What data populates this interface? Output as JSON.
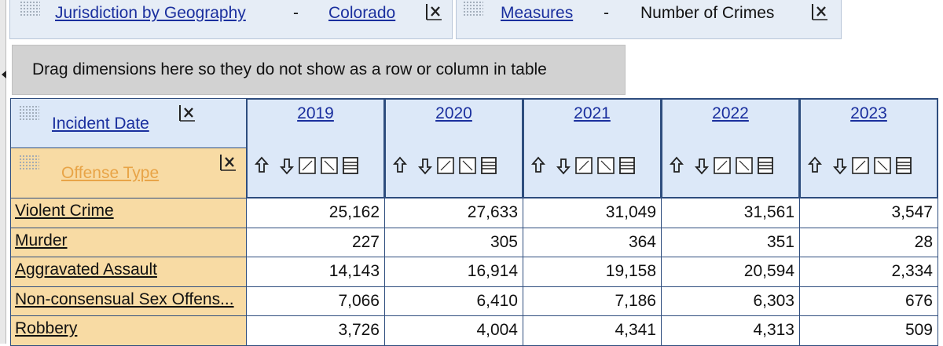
{
  "filters": [
    {
      "label": "Jurisdiction by Geography",
      "separator": "-",
      "value": "Colorado"
    },
    {
      "label": "Measures",
      "separator": "-",
      "value": "Number of Crimes"
    }
  ],
  "drop_zone": "Drag dimensions here so they do not show as a row or column in table",
  "table": {
    "column_dimension": "Incident Date",
    "row_dimension": "Offense Type",
    "columns": [
      "2019",
      "2020",
      "2021",
      "2022",
      "2023"
    ],
    "rows": [
      {
        "label": "Violent Crime",
        "values": [
          "25,162",
          "27,633",
          "31,049",
          "31,561",
          "3,547"
        ]
      },
      {
        "label": "Murder",
        "values": [
          "227",
          "305",
          "364",
          "351",
          "28"
        ]
      },
      {
        "label": "Aggravated Assault",
        "values": [
          "14,143",
          "16,914",
          "19,158",
          "20,594",
          "2,334"
        ]
      },
      {
        "label": "Non-consensual Sex Offens...",
        "values": [
          "7,066",
          "6,410",
          "7,186",
          "6,303",
          "676"
        ]
      },
      {
        "label": "Robbery",
        "values": [
          "3,726",
          "4,004",
          "4,341",
          "4,313",
          "509"
        ]
      }
    ]
  }
}
